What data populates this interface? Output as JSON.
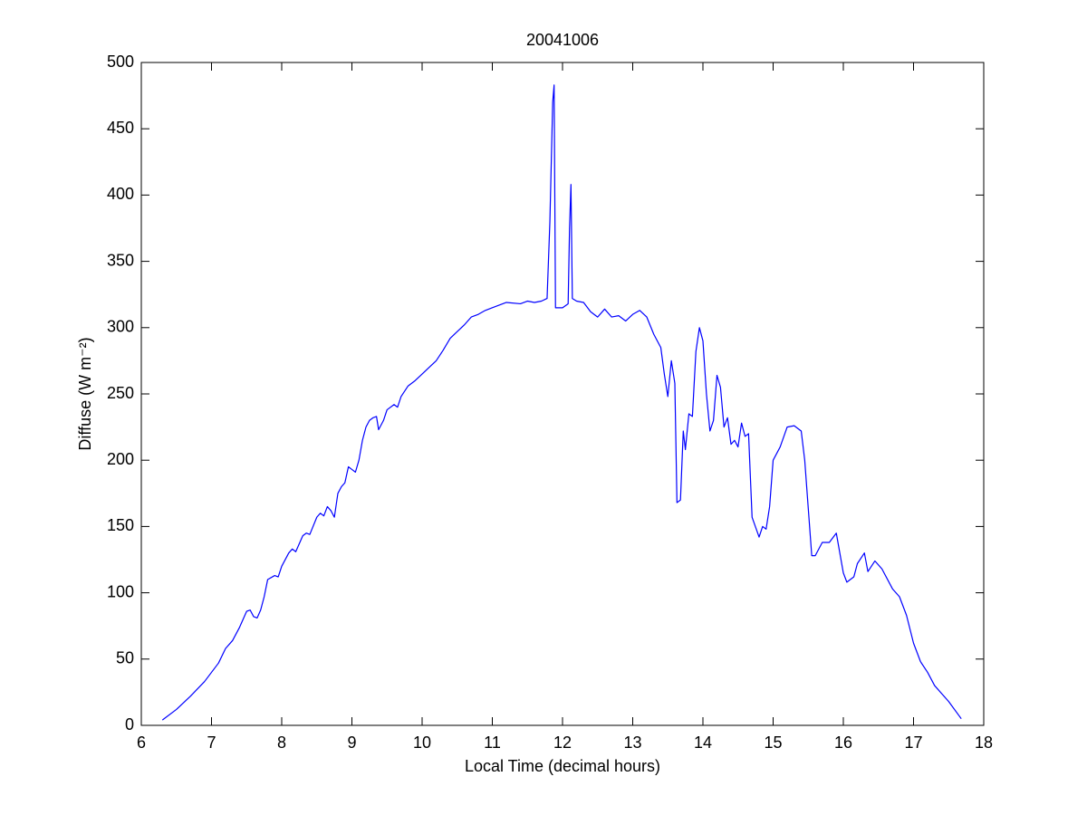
{
  "chart_data": {
    "type": "line",
    "title": "20041006",
    "x_label": "Local Time (decimal hours)",
    "y_label": "Diffuse (W m⁻²)",
    "color": "#0000ff",
    "xlim": [
      6,
      18
    ],
    "xticks": [
      6,
      7,
      8,
      9,
      10,
      11,
      12,
      13,
      14,
      15,
      16,
      17,
      18
    ],
    "ylim": [
      0,
      500
    ],
    "yticks": [
      0,
      50,
      100,
      150,
      200,
      250,
      300,
      350,
      400,
      450,
      500
    ],
    "grid": false,
    "x": [
      6.3,
      6.5,
      6.7,
      6.9,
      7.0,
      7.1,
      7.2,
      7.3,
      7.4,
      7.5,
      7.55,
      7.6,
      7.65,
      7.7,
      7.75,
      7.8,
      7.9,
      7.95,
      8.0,
      8.1,
      8.15,
      8.2,
      8.3,
      8.35,
      8.4,
      8.5,
      8.55,
      8.6,
      8.65,
      8.7,
      8.75,
      8.8,
      8.85,
      8.9,
      8.95,
      9.0,
      9.05,
      9.1,
      9.15,
      9.2,
      9.25,
      9.3,
      9.35,
      9.38,
      9.45,
      9.5,
      9.6,
      9.65,
      9.7,
      9.8,
      9.9,
      10.0,
      10.1,
      10.2,
      10.3,
      10.4,
      10.5,
      10.6,
      10.7,
      10.8,
      10.9,
      11.0,
      11.2,
      11.4,
      11.5,
      11.6,
      11.7,
      11.78,
      11.82,
      11.86,
      11.88,
      11.9,
      12.0,
      12.08,
      12.1,
      12.12,
      12.14,
      12.2,
      12.3,
      12.4,
      12.5,
      12.6,
      12.7,
      12.8,
      12.9,
      13.0,
      13.1,
      13.2,
      13.3,
      13.4,
      13.45,
      13.5,
      13.55,
      13.6,
      13.63,
      13.68,
      13.72,
      13.75,
      13.8,
      13.85,
      13.9,
      13.95,
      14.0,
      14.05,
      14.1,
      14.15,
      14.2,
      14.25,
      14.3,
      14.35,
      14.4,
      14.45,
      14.5,
      14.55,
      14.6,
      14.65,
      14.7,
      14.8,
      14.85,
      14.9,
      14.95,
      15.0,
      15.1,
      15.2,
      15.3,
      15.4,
      15.45,
      15.55,
      15.6,
      15.7,
      15.8,
      15.9,
      16.0,
      16.05,
      16.15,
      16.2,
      16.3,
      16.35,
      16.45,
      16.55,
      16.7,
      16.8,
      16.9,
      17.0,
      17.1,
      17.2,
      17.3,
      17.5,
      17.68
    ],
    "values": [
      4,
      12,
      22,
      33,
      40,
      47,
      58,
      64,
      74,
      86,
      87,
      82,
      81,
      87,
      97,
      110,
      113,
      112,
      120,
      130,
      133,
      131,
      143,
      145,
      144,
      157,
      160,
      158,
      165,
      162,
      157,
      175,
      180,
      183,
      195,
      193,
      191,
      200,
      215,
      225,
      230,
      232,
      233,
      223,
      230,
      238,
      242,
      240,
      248,
      256,
      260,
      265,
      270,
      275,
      283,
      292,
      297,
      302,
      308,
      310,
      313,
      315,
      319,
      318,
      320,
      319,
      320,
      322,
      380,
      470,
      483,
      315,
      315,
      318,
      375,
      408,
      322,
      320,
      319,
      312,
      308,
      314,
      308,
      309,
      305,
      310,
      313,
      308,
      295,
      285,
      265,
      248,
      275,
      258,
      168,
      170,
      222,
      208,
      235,
      233,
      282,
      300,
      290,
      250,
      222,
      230,
      264,
      255,
      225,
      232,
      212,
      215,
      210,
      228,
      218,
      220,
      157,
      142,
      150,
      148,
      165,
      200,
      210,
      225,
      226,
      222,
      200,
      128,
      128,
      138,
      138,
      145,
      115,
      108,
      112,
      122,
      130,
      116,
      124,
      118,
      103,
      97,
      83,
      62,
      48,
      40,
      30,
      18,
      5
    ]
  }
}
